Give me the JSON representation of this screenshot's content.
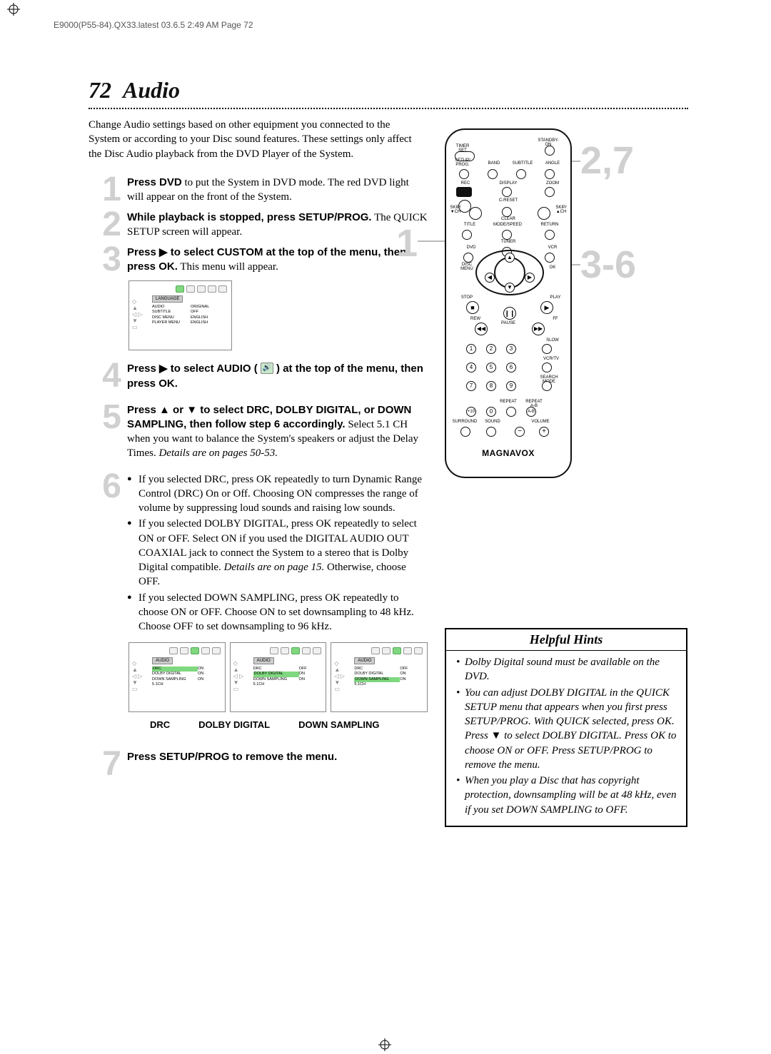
{
  "page_meta": {
    "header_line": "E9000(P55-84).QX33.latest  03.6.5 2:49 AM  Page 72"
  },
  "title": {
    "number": "72",
    "text": "Audio"
  },
  "intro": "Change Audio settings based on other equipment you connected to the System or according to your Disc sound features. These settings only affect the Disc Audio playback from the DVD Player of the System.",
  "steps": {
    "s1": {
      "num": "1",
      "bold": "Press DVD",
      "rest": " to put the System in DVD mode. The red DVD light will appear on the front of the System."
    },
    "s2": {
      "num": "2",
      "bold": "While playback is stopped, press SETUP/PROG.",
      "rest": " The QUICK SETUP screen will appear."
    },
    "s3": {
      "num": "3",
      "bold": "Press ▶ to select CUSTOM at the top of the menu, then press OK.",
      "rest": "  This menu will appear."
    },
    "s4": {
      "num": "4",
      "bold": "Press ▶ to select AUDIO ( ",
      "bold2": " ) at the top of the menu, then press OK."
    },
    "s5": {
      "num": "5",
      "bold": "Press ▲ or ▼ to select DRC, DOLBY DIGITAL, or DOWN SAMPLING, then follow step 6 accordingly.",
      "rest": " Select 5.1 CH when you want to balance the System's speakers or adjust the Delay Times. ",
      "italic": "Details are on pages 50-53."
    },
    "s6": {
      "num": "6",
      "bullets": [
        {
          "text": "If you selected DRC, press OK repeatedly to turn Dynamic Range Control (DRC) On or Off. Choosing ON compresses the range of volume by suppressing loud sounds and raising low sounds."
        },
        {
          "text": "If you selected DOLBY DIGITAL, press OK repeatedly to select ON or OFF. Select ON if you used the DIGITAL AUDIO OUT COAXIAL jack to connect the System to a stereo that is Dolby Digital compatible. ",
          "italic": "Details are on page 15.",
          "text2": " Otherwise, choose OFF."
        },
        {
          "text": "If you selected DOWN SAMPLING, press OK repeatedly to choose ON or OFF. Choose ON to set downsampling to 48 kHz. Choose OFF to set downsampling to 96 kHz."
        }
      ]
    },
    "s7": {
      "num": "7",
      "bold": "Press SETUP/PROG to remove the menu."
    }
  },
  "screenshot1": {
    "tab": "LANGUAGE",
    "rows": [
      [
        "AUDIO",
        "ORIGINAL"
      ],
      [
        "SUBTITLE",
        "OFF"
      ],
      [
        "DISC MENU",
        "ENGLISH"
      ],
      [
        "PLAYER MENU",
        "ENGLISH"
      ]
    ]
  },
  "screenshot_audio": {
    "tab": "AUDIO",
    "variants": [
      {
        "label": "DRC",
        "rows": [
          [
            "DRC",
            "ON",
            true
          ],
          [
            "DOLBY DIGITAL",
            "ON",
            false
          ],
          [
            "DOWN SAMPLING",
            "ON",
            false
          ],
          [
            "5.1CH",
            "",
            false
          ]
        ]
      },
      {
        "label": "DOLBY DIGITAL",
        "rows": [
          [
            "DRC",
            "OFF",
            false
          ],
          [
            "DOLBY DIGITAL",
            "ON",
            true
          ],
          [
            "DOWN SAMPLING",
            "ON",
            false
          ],
          [
            "5.1CH",
            "",
            false
          ]
        ]
      },
      {
        "label": "DOWN SAMPLING",
        "rows": [
          [
            "DRC",
            "OFF",
            false
          ],
          [
            "DOLBY DIGITAL",
            "ON",
            false
          ],
          [
            "DOWN SAMPLING",
            "ON",
            true
          ],
          [
            "5.1CH",
            "",
            false
          ]
        ]
      }
    ]
  },
  "remote": {
    "brand": "MAGNAVOX",
    "top_labels": [
      "TIMER SET",
      "STANDBY-ON",
      "SETUP/ PROG.",
      "BAND",
      "SUBTITLE",
      "ANGLE",
      "REC",
      "DISPLAY",
      "ZOOM",
      "C-RESET",
      "SKIP/ ▼CH",
      "CLEAR",
      "SKIP/ ▲CH",
      "TITLE",
      "MODE/SPEED",
      "RETURN",
      "DVD",
      "TUNER",
      "VCR",
      "DISC",
      "MENU",
      "OK",
      "STOP",
      "PLAY",
      "REW",
      "PAUSE",
      "FF",
      "SLOW",
      "VCR/TV",
      "SEARCH MODE",
      "REPEAT",
      "REPEAT A-B",
      "SURROUND",
      "SOUND",
      "VOLUME"
    ],
    "callouts": {
      "c1": "1",
      "c27": "2,7",
      "c36": "3-6"
    }
  },
  "hints": {
    "title": "Helpful Hints",
    "items": [
      "Dolby Digital sound must be available on the DVD.",
      "You can adjust DOLBY DIGITAL in the QUICK SETUP menu that appears when you first press SETUP/PROG. With QUICK selected, press OK. Press ▼ to select DOLBY DIGITAL. Press OK to choose ON or OFF. Press SETUP/PROG to remove the menu.",
      "When you play a Disc that has copyright protection, downsampling will be at 48 kHz, even if you set DOWN SAMPLING to OFF."
    ]
  },
  "colors": {
    "step_num": "#d0d0d0",
    "callout": "#d0d0d0",
    "highlight": "#7fd87f"
  }
}
